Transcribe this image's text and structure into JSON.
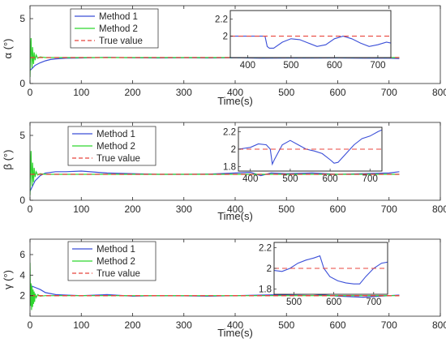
{
  "colors": {
    "method1": "#3b4fd8",
    "method2": "#2fd62f",
    "truth": "#e8453c",
    "axis": "#262626"
  },
  "chart_data": [
    {
      "type": "line",
      "title": "",
      "xlabel": "Time(s)",
      "ylabel": "α (°)",
      "xlim": [
        0,
        800
      ],
      "ylim": [
        0,
        6
      ],
      "xticks": [
        "0",
        "100",
        "200",
        "300",
        "400",
        "500",
        "600",
        "700",
        "800"
      ],
      "yticks": [
        "5",
        "0"
      ],
      "legend": {
        "placement": "top-left",
        "entries": [
          "Method 1",
          "Method 2",
          "True value"
        ]
      },
      "true_value": 2,
      "series": [
        {
          "name": "Method 1",
          "x": [
            0,
            5,
            10,
            20,
            30,
            40,
            50,
            70,
            100,
            150,
            200,
            250,
            300,
            350,
            400,
            450,
            500,
            550,
            600,
            650,
            700,
            720
          ],
          "y": [
            1.0,
            1.2,
            1.4,
            1.6,
            1.75,
            1.85,
            1.9,
            1.95,
            1.97,
            2.02,
            1.98,
            1.97,
            1.98,
            1.97,
            1.98,
            1.95,
            1.96,
            1.96,
            1.97,
            1.95,
            1.95,
            1.92
          ]
        },
        {
          "name": "Method 2",
          "x": [
            0,
            1,
            2,
            3,
            4,
            5,
            6,
            7,
            8,
            10,
            12,
            15,
            20,
            30,
            50,
            100,
            200,
            300,
            400,
            500,
            600,
            720
          ],
          "y": [
            0.5,
            2.5,
            3.5,
            2.0,
            1.2,
            2.8,
            1.9,
            1.5,
            2.4,
            1.8,
            2.2,
            1.95,
            2.05,
            2.0,
            2.0,
            2.0,
            2.0,
            2.0,
            2.0,
            2.0,
            2.0,
            2.0
          ]
        },
        {
          "name": "True value",
          "x": [
            0,
            720
          ],
          "y": [
            2,
            2
          ]
        }
      ],
      "inset": {
        "xlim": [
          360,
          730
        ],
        "ylim": [
          1.75,
          2.3
        ],
        "xticks": [
          "400",
          "500",
          "600",
          "700"
        ],
        "yticks": [
          "2.2",
          "2"
        ],
        "series": [
          {
            "name": "Method 1",
            "x": [
              360,
              400,
              430,
              440,
              445,
              450,
              460,
              480,
              500,
              520,
              540,
              560,
              580,
              600,
              620,
              640,
              660,
              680,
              700,
              720,
              730
            ],
            "y": [
              2.0,
              2.0,
              2.0,
              2.0,
              1.88,
              1.86,
              1.86,
              1.93,
              1.97,
              1.96,
              1.92,
              1.88,
              1.9,
              1.97,
              2.0,
              1.97,
              1.92,
              1.88,
              1.9,
              1.93,
              1.92
            ]
          },
          {
            "name": "True value",
            "x": [
              360,
              730
            ],
            "y": [
              2,
              2
            ]
          }
        ]
      }
    },
    {
      "type": "line",
      "title": "",
      "xlabel": "Time(s)",
      "ylabel": "β (°)",
      "xlim": [
        0,
        800
      ],
      "ylim": [
        0,
        6
      ],
      "xticks": [
        "0",
        "100",
        "200",
        "300",
        "400",
        "500",
        "600",
        "700",
        "800"
      ],
      "yticks": [
        "5",
        "0"
      ],
      "legend": {
        "placement": "top-left",
        "entries": [
          "Method 1",
          "Method 2",
          "True value"
        ]
      },
      "true_value": 2,
      "series": [
        {
          "name": "Method 1",
          "x": [
            0,
            5,
            10,
            20,
            30,
            50,
            70,
            100,
            150,
            200,
            250,
            300,
            350,
            400,
            430,
            450,
            470,
            500,
            550,
            600,
            650,
            700,
            720
          ],
          "y": [
            0.7,
            1.1,
            1.5,
            1.9,
            2.1,
            2.2,
            2.2,
            2.25,
            2.1,
            2.05,
            2.0,
            2.0,
            2.02,
            2.1,
            2.15,
            1.9,
            2.1,
            2.05,
            2.1,
            2.0,
            2.05,
            2.1,
            2.2
          ]
        },
        {
          "name": "Method 2",
          "x": [
            0,
            1,
            2,
            3,
            4,
            5,
            6,
            7,
            8,
            10,
            12,
            15,
            20,
            30,
            50,
            100,
            200,
            300,
            400,
            500,
            600,
            720
          ],
          "y": [
            0.4,
            2.5,
            3.8,
            2.0,
            1.1,
            2.9,
            1.9,
            1.4,
            2.5,
            1.8,
            2.2,
            1.95,
            2.05,
            2.0,
            2.0,
            2.0,
            2.0,
            2.0,
            2.0,
            2.0,
            2.0,
            2.0
          ]
        },
        {
          "name": "True value",
          "x": [
            0,
            720
          ],
          "y": [
            2,
            2
          ]
        }
      ],
      "inset": {
        "xlim": [
          370,
          730
        ],
        "ylim": [
          1.75,
          2.25
        ],
        "xticks": [
          "400",
          "500",
          "600",
          "700"
        ],
        "yticks": [
          "2.2",
          "2",
          "1.8"
        ],
        "series": [
          {
            "name": "Method 1",
            "x": [
              370,
              400,
              420,
              440,
              450,
              455,
              460,
              480,
              500,
              520,
              540,
              560,
              580,
              600,
              610,
              620,
              640,
              660,
              680,
              700,
              720,
              730
            ],
            "y": [
              2.0,
              2.02,
              2.06,
              2.05,
              2.0,
              1.83,
              1.88,
              2.05,
              2.1,
              2.05,
              2.0,
              1.98,
              1.95,
              1.88,
              1.84,
              1.85,
              1.95,
              2.05,
              2.12,
              2.15,
              2.2,
              2.22
            ]
          },
          {
            "name": "True value",
            "x": [
              370,
              730
            ],
            "y": [
              2,
              2
            ]
          }
        ]
      }
    },
    {
      "type": "line",
      "title": "",
      "xlabel": "Time(s)",
      "ylabel": "γ (°)",
      "xlim": [
        0,
        800
      ],
      "ylim": [
        0,
        7.5
      ],
      "xticks": [
        "0",
        "100",
        "200",
        "300",
        "400",
        "500",
        "600",
        "700",
        "800"
      ],
      "yticks": [
        "6",
        "4",
        "2"
      ],
      "legend": {
        "placement": "top-left",
        "entries": [
          "Method 1",
          "Method 2",
          "True value"
        ]
      },
      "true_value": 2,
      "series": [
        {
          "name": "Method 1",
          "x": [
            0,
            5,
            10,
            20,
            30,
            50,
            70,
            100,
            150,
            200,
            250,
            300,
            350,
            400,
            450,
            500,
            550,
            600,
            650,
            700,
            720
          ],
          "y": [
            3.0,
            2.9,
            2.8,
            2.6,
            2.3,
            2.1,
            2.05,
            2.0,
            2.1,
            1.95,
            2.0,
            1.98,
            1.95,
            2.0,
            2.05,
            2.1,
            2.15,
            1.95,
            1.85,
            2.0,
            2.05
          ]
        },
        {
          "name": "Method 2",
          "x": [
            0,
            1,
            2,
            3,
            4,
            5,
            6,
            7,
            8,
            9,
            10,
            12,
            15,
            20,
            30,
            50,
            100,
            200,
            300,
            400,
            500,
            600,
            720
          ],
          "y": [
            5.2,
            1.0,
            3.2,
            0.6,
            2.9,
            0.9,
            2.6,
            1.2,
            2.4,
            1.4,
            2.2,
            1.8,
            2.1,
            1.95,
            2.0,
            2.0,
            2.0,
            2.0,
            2.0,
            2.0,
            2.0,
            2.0,
            2.0
          ]
        },
        {
          "name": "True value",
          "x": [
            0,
            720
          ],
          "y": [
            2,
            2
          ]
        }
      ],
      "inset": {
        "xlim": [
          450,
          735
        ],
        "ylim": [
          1.75,
          2.25
        ],
        "xticks": [
          "500",
          "600",
          "700"
        ],
        "yticks": [
          "2.2",
          "2",
          "1.8"
        ],
        "series": [
          {
            "name": "Method 1",
            "x": [
              450,
              470,
              490,
              510,
              530,
              550,
              565,
              575,
              590,
              610,
              630,
              650,
              665,
              680,
              700,
              720,
              735
            ],
            "y": [
              1.98,
              1.97,
              2.0,
              2.05,
              2.08,
              2.1,
              2.12,
              2.0,
              1.92,
              1.88,
              1.86,
              1.85,
              1.85,
              1.92,
              2.0,
              2.05,
              2.06
            ]
          },
          {
            "name": "True value",
            "x": [
              450,
              735
            ],
            "y": [
              2,
              2
            ]
          }
        ]
      }
    }
  ]
}
